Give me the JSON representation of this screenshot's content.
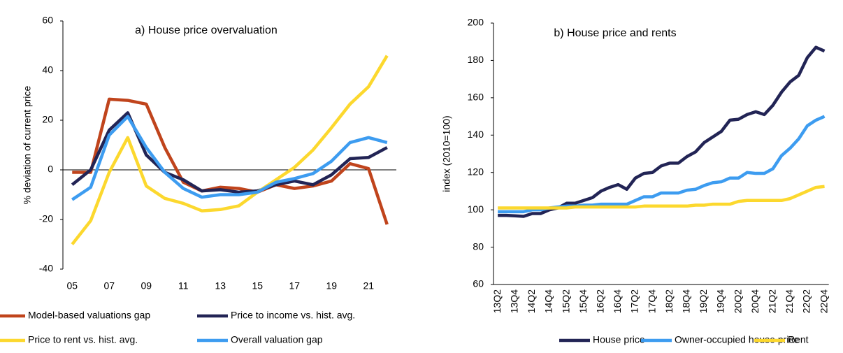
{
  "chart_data": [
    {
      "type": "line",
      "title": "a) House price overvaluation",
      "y_label": "% deviation of current price",
      "categories": [
        "05",
        null,
        "07",
        null,
        "09",
        null,
        "11",
        null,
        "13",
        null,
        "15",
        null,
        "17",
        null,
        "19",
        null,
        "21",
        null
      ],
      "ylim": [
        -40,
        60
      ],
      "yticks": [
        -40,
        -20,
        0,
        20,
        40,
        60
      ],
      "legend": "bottom",
      "series": [
        {
          "name": "Model-based valuations gap",
          "color": "#c0441c",
          "values": [
            -1,
            -1,
            28.5,
            28,
            26.5,
            9,
            -5,
            -8.5,
            -7,
            -7.5,
            -9,
            -6,
            -7.5,
            -6.5,
            -4.5,
            2.5,
            0.5,
            -22
          ]
        },
        {
          "name": "Price to income vs. hist. avg.",
          "color": "#222455",
          "values": [
            -6,
            0,
            16,
            23,
            6,
            -1,
            -4,
            -8.5,
            -8,
            -9,
            -8.5,
            -6,
            -4.5,
            -6,
            -2,
            4.5,
            5,
            9
          ]
        },
        {
          "name": "Price to rent vs. hist. avg.",
          "color": "#fcd82e",
          "values": [
            -30,
            -20.5,
            -1,
            13,
            -6.5,
            -11.5,
            -13.5,
            -16.5,
            -16,
            -14.5,
            -9,
            -4,
            1,
            8,
            17,
            26.5,
            33.5,
            46
          ]
        },
        {
          "name": "Overall valuation gap",
          "color": "#3d9cf0",
          "values": [
            -12,
            -7,
            14,
            21.5,
            9,
            -1,
            -7.5,
            -11,
            -10,
            -10,
            -9,
            -5,
            -3.5,
            -1.5,
            3.5,
            11,
            13,
            11
          ]
        }
      ]
    },
    {
      "type": "line",
      "title": "b) House price and rents",
      "y_label": "index (2010=100)",
      "categories": [
        "13Q2",
        null,
        "13Q4",
        null,
        "14Q2",
        null,
        "14Q4",
        null,
        "15Q2",
        null,
        "15Q4",
        null,
        "16Q2",
        null,
        "16Q4",
        null,
        "17Q2",
        null,
        "17Q4",
        null,
        "18Q2",
        null,
        "18Q4",
        null,
        "19Q2",
        null,
        "19Q4",
        null,
        "20Q2",
        null,
        "20Q4",
        null,
        "21Q2",
        null,
        "21Q4",
        null,
        "22Q2",
        null,
        "22Q4"
      ],
      "ylim": [
        60,
        200
      ],
      "yticks": [
        60,
        80,
        100,
        120,
        140,
        160,
        180,
        200
      ],
      "legend": "bottom",
      "series": [
        {
          "name": "House price",
          "color": "#222455",
          "values": [
            97,
            97,
            96.8,
            96.5,
            98,
            98,
            100,
            101,
            103.5,
            103.5,
            105,
            106.5,
            110,
            112,
            113.5,
            111,
            117,
            119.5,
            120,
            123.5,
            125,
            125,
            128.5,
            131,
            136,
            139,
            142,
            148,
            148.5,
            151,
            152.5,
            151,
            156,
            163,
            168.5,
            172,
            181.5,
            187,
            185
          ]
        },
        {
          "name": "Owner-occupied house price",
          "color": "#3d9cf0",
          "values": [
            99,
            99,
            99,
            99,
            100,
            100,
            101,
            101.5,
            102,
            102,
            102.5,
            102.5,
            103,
            103,
            103,
            103,
            105,
            107,
            107,
            109,
            109,
            109,
            110.5,
            111,
            113,
            114.5,
            115,
            117,
            117,
            120,
            119.5,
            119.5,
            122,
            129,
            133,
            138,
            145,
            148,
            150
          ]
        },
        {
          "name": "Rent",
          "color": "#fcd82e",
          "values": [
            101,
            101,
            101,
            101,
            101,
            101,
            101,
            101,
            101,
            101.5,
            101.5,
            101.5,
            101.5,
            101.5,
            101.5,
            101.5,
            101.5,
            102,
            102,
            102,
            102,
            102,
            102,
            102.5,
            102.5,
            103,
            103,
            103,
            104.5,
            105,
            105,
            105,
            105,
            105,
            106,
            108,
            110,
            112,
            112.5
          ]
        }
      ]
    }
  ]
}
